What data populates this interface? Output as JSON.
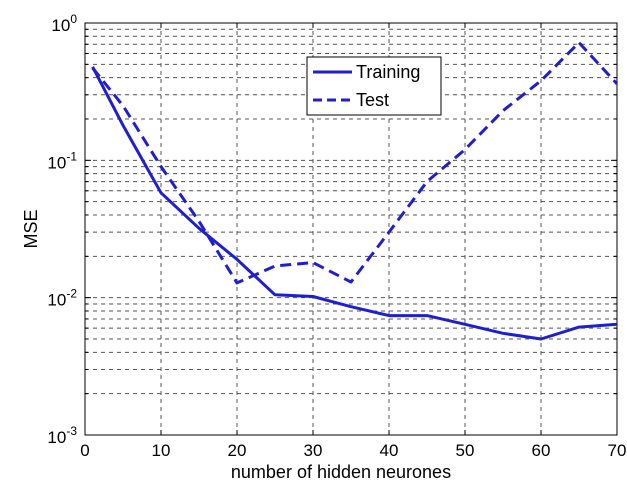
{
  "chart_data": {
    "type": "line",
    "xlabel": "number of hidden neurones",
    "ylabel": "MSE",
    "xlim": [
      0,
      70
    ],
    "ylim": [
      0.001,
      1
    ],
    "yscale": "log",
    "grid": true,
    "legend": "top-center",
    "x_ticks": [
      "0",
      "10",
      "20",
      "30",
      "40",
      "50",
      "60",
      "70"
    ],
    "y_ticks": [
      {
        "base": "10",
        "exp": "0",
        "value": 1
      },
      {
        "base": "10",
        "exp": "-1",
        "value": 0.1
      },
      {
        "base": "10",
        "exp": "-2",
        "value": 0.01
      },
      {
        "base": "10",
        "exp": "-3",
        "value": 0.001
      }
    ],
    "series": [
      {
        "name": "Training",
        "style": "solid",
        "color": "#1f1fd0",
        "x": [
          1,
          5,
          10,
          15,
          20,
          25,
          30,
          35,
          40,
          45,
          50,
          55,
          60,
          65,
          70
        ],
        "y": [
          0.48,
          0.18,
          0.058,
          0.032,
          0.019,
          0.0105,
          0.0102,
          0.0086,
          0.0074,
          0.0074,
          0.0064,
          0.0055,
          0.005,
          0.0061,
          0.0064
        ]
      },
      {
        "name": "Test",
        "style": "dashed",
        "color": "#1f1fd0",
        "x": [
          1,
          5,
          10,
          15,
          20,
          25,
          30,
          35,
          40,
          45,
          50,
          55,
          60,
          65,
          70
        ],
        "y": [
          0.47,
          0.25,
          0.09,
          0.036,
          0.0128,
          0.017,
          0.018,
          0.013,
          0.03,
          0.07,
          0.12,
          0.23,
          0.38,
          0.72,
          0.36
        ]
      }
    ]
  }
}
